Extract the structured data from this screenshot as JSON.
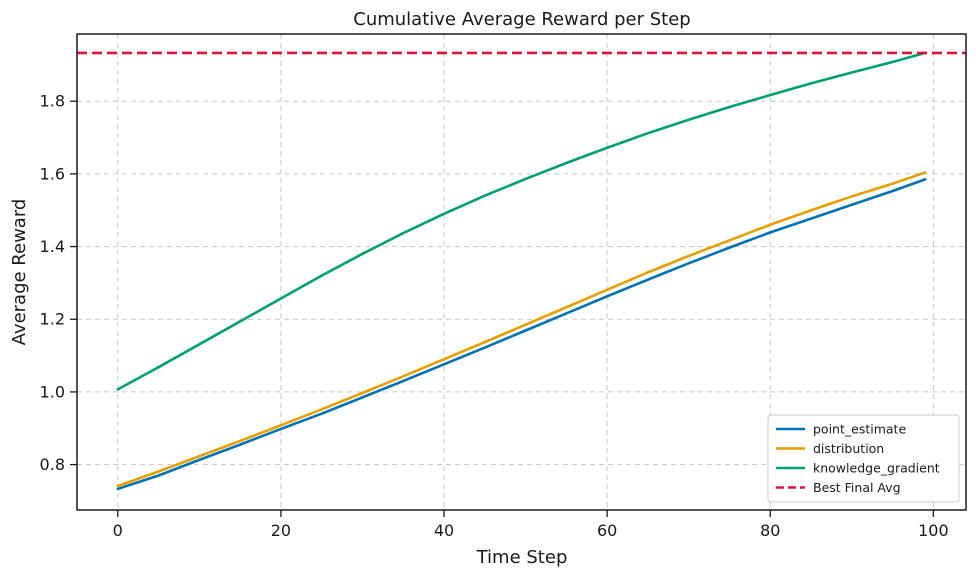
{
  "chart_data": {
    "type": "line",
    "title": "Cumulative Average Reward per Step",
    "xlabel": "Time Step",
    "ylabel": "Average Reward",
    "xlim": [
      -5,
      104
    ],
    "ylim": [
      0.675,
      1.985
    ],
    "xticks": [
      0,
      20,
      40,
      60,
      80,
      100
    ],
    "yticks": [
      0.8,
      1.0,
      1.2,
      1.4,
      1.6,
      1.8
    ],
    "ytick_labels": [
      "0.8",
      "1.0",
      "1.2",
      "1.4",
      "1.6",
      "1.8"
    ],
    "grid": true,
    "legend_position": "lower right",
    "series": [
      {
        "name": "point_estimate",
        "color": "#0072b2",
        "x": [
          0,
          5,
          10,
          15,
          20,
          25,
          30,
          35,
          40,
          45,
          50,
          55,
          60,
          65,
          70,
          75,
          80,
          85,
          90,
          95,
          99
        ],
        "values": [
          0.733,
          0.77,
          0.813,
          0.855,
          0.898,
          0.94,
          0.985,
          1.03,
          1.076,
          1.122,
          1.169,
          1.216,
          1.263,
          1.309,
          1.354,
          1.397,
          1.439,
          1.477,
          1.515,
          1.553,
          1.585
        ]
      },
      {
        "name": "distribution",
        "color": "#e69f00",
        "x": [
          0,
          5,
          10,
          15,
          20,
          25,
          30,
          35,
          40,
          45,
          50,
          55,
          60,
          65,
          70,
          75,
          80,
          85,
          90,
          95,
          99
        ],
        "values": [
          0.741,
          0.781,
          0.823,
          0.865,
          0.908,
          0.952,
          0.997,
          1.043,
          1.09,
          1.137,
          1.185,
          1.233,
          1.281,
          1.329,
          1.374,
          1.417,
          1.46,
          1.5,
          1.538,
          1.573,
          1.604
        ]
      },
      {
        "name": "knowledge_gradient",
        "color": "#009e73",
        "x": [
          0,
          5,
          10,
          15,
          20,
          25,
          30,
          35,
          40,
          45,
          50,
          55,
          60,
          65,
          70,
          75,
          80,
          85,
          90,
          95,
          99
        ],
        "values": [
          1.007,
          1.068,
          1.131,
          1.194,
          1.257,
          1.32,
          1.38,
          1.437,
          1.49,
          1.54,
          1.586,
          1.63,
          1.672,
          1.712,
          1.749,
          1.784,
          1.817,
          1.849,
          1.879,
          1.908,
          1.933
        ]
      }
    ],
    "reference_line": {
      "name": "Best Final Avg",
      "y": 1.933,
      "color": "#dc143c",
      "style": "dashed"
    }
  }
}
